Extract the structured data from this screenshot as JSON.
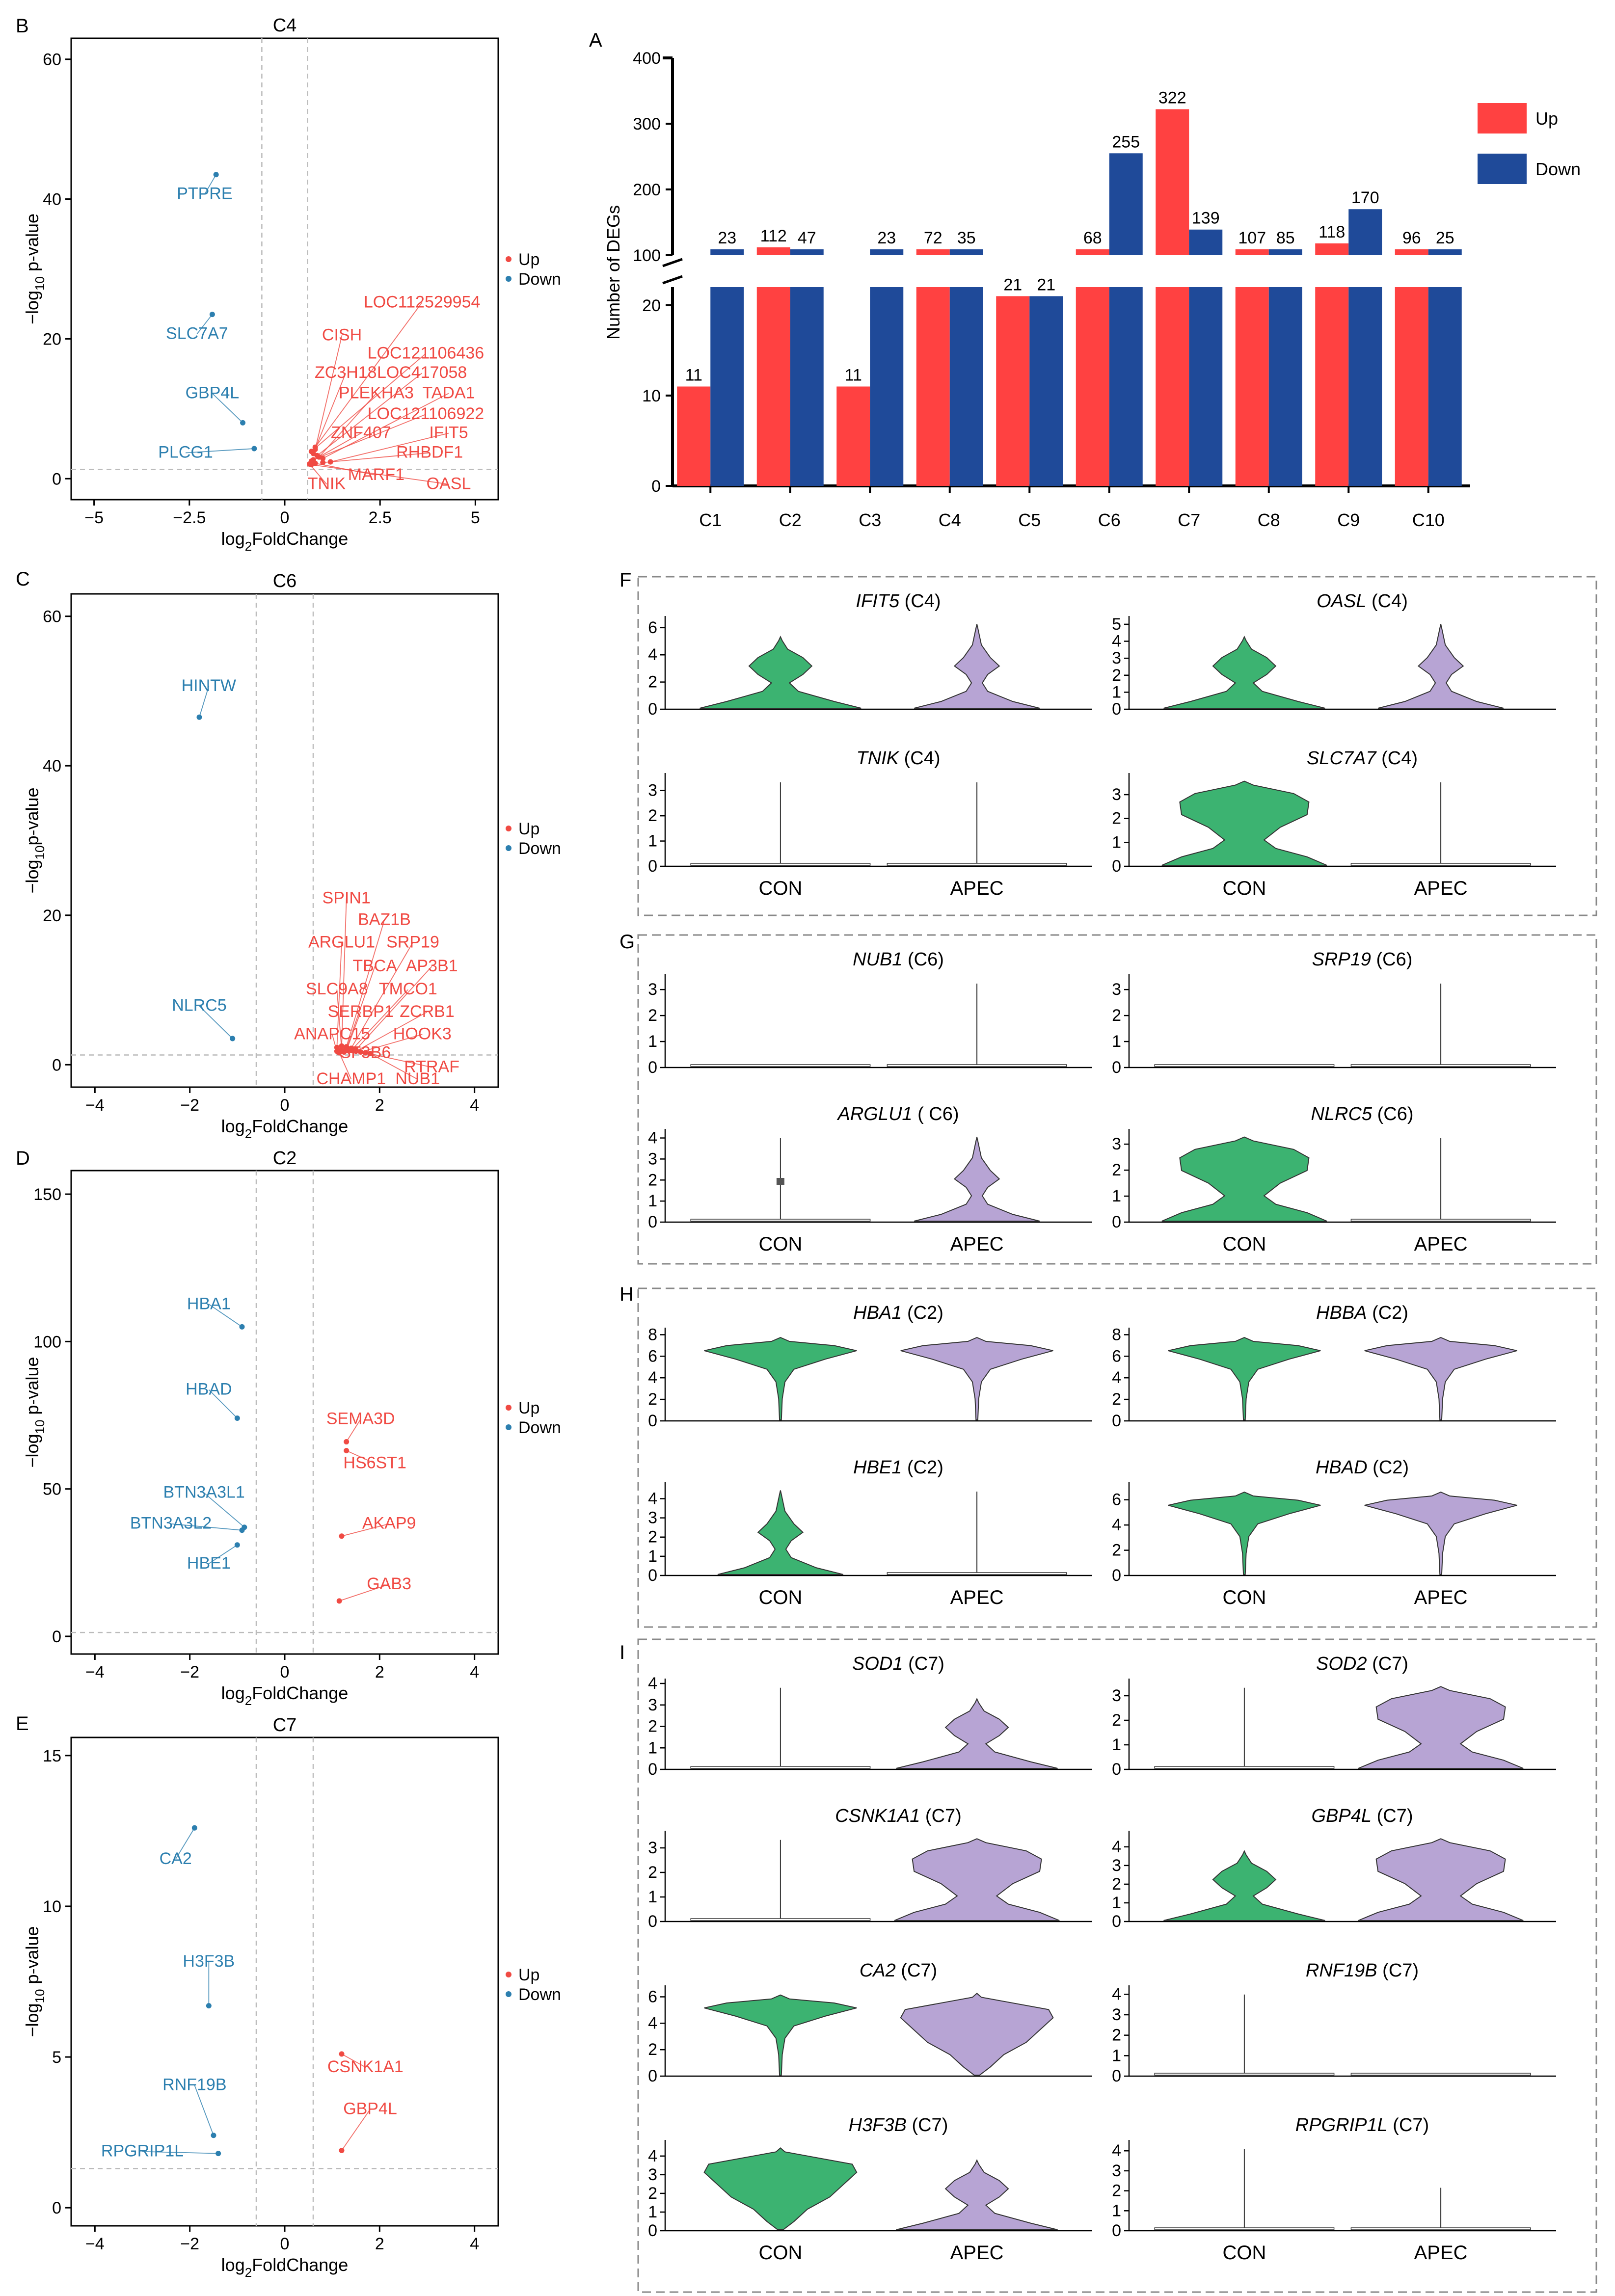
{
  "colors": {
    "up": "#f04a43",
    "down": "#2c7faf",
    "bar_up": "#ff4141",
    "bar_down": "#1f4a99",
    "con": "#3cb371",
    "apec": "#b7a4d4",
    "axis": "#000000"
  },
  "panel_labels": {
    "A": "A",
    "B": "B",
    "C": "C",
    "D": "D",
    "E": "E",
    "F": "F",
    "G": "G",
    "H": "H",
    "I": "I"
  },
  "chart_data": [
    {
      "id": "A",
      "type": "bar",
      "ylabel": "Number of DEGs",
      "categories": [
        "C1",
        "C2",
        "C3",
        "C4",
        "C5",
        "C6",
        "C7",
        "C8",
        "C9",
        "C10"
      ],
      "series": [
        {
          "name": "Up",
          "values": [
            11,
            112,
            11,
            72,
            21,
            68,
            322,
            107,
            118,
            96
          ]
        },
        {
          "name": "Down",
          "values": [
            23,
            47,
            23,
            35,
            21,
            255,
            139,
            85,
            170,
            25
          ]
        }
      ],
      "lower_axis": {
        "range": [
          0,
          22
        ],
        "ticks": [
          0,
          10,
          20
        ]
      },
      "upper_axis": {
        "range": [
          100,
          400
        ],
        "ticks": [
          100,
          200,
          300,
          400
        ]
      },
      "axis_break": true,
      "legend": [
        "Up",
        "Down"
      ]
    },
    {
      "id": "B",
      "type": "scatter",
      "title": "C4",
      "xlabel_main": "log",
      "xlabel_sub": "2",
      "xlabel_tail": "FoldChange",
      "ylabel_main": "−log",
      "ylabel_sub": "10",
      "ylabel_tail": " p-value",
      "xlim": [
        -5.6,
        5.6
      ],
      "ylim": [
        -3,
        63
      ],
      "xticks": [
        -5,
        -2.5,
        0,
        2.5,
        5
      ],
      "xtick_labels": [
        "−5",
        "−2.5",
        "0",
        "2.5",
        "5"
      ],
      "yticks": [
        0,
        20,
        40,
        60
      ],
      "vlines": [
        -0.6,
        0.6
      ],
      "hline": 1.3,
      "legend": [
        "Up",
        "Down"
      ],
      "points": [
        {
          "gene": "PTPRE",
          "x": -1.8,
          "y": 43.5,
          "dir": "down",
          "lx": -2.1,
          "ly": 40
        },
        {
          "gene": "SLC7A7",
          "x": -1.9,
          "y": 23.5,
          "dir": "down",
          "lx": -2.3,
          "ly": 20
        },
        {
          "gene": "GBP4L",
          "x": -1.1,
          "y": 8,
          "dir": "down",
          "lx": -1.9,
          "ly": 11.5
        },
        {
          "gene": "PLCG1",
          "x": -0.8,
          "y": 4.3,
          "dir": "down",
          "lx": -2.6,
          "ly": 3
        },
        {
          "gene": "LOC112529954",
          "x": 0.8,
          "y": 4.5,
          "dir": "up",
          "lx": 3.6,
          "ly": 24.5
        },
        {
          "gene": "CISH",
          "x": 0.8,
          "y": 4.2,
          "dir": "up",
          "lx": 1.5,
          "ly": 19.8
        },
        {
          "gene": "LOC121106436",
          "x": 0.7,
          "y": 3.9,
          "dir": "up",
          "lx": 3.7,
          "ly": 17.2
        },
        {
          "gene": "ZC3H18",
          "x": 0.75,
          "y": 3.6,
          "dir": "up",
          "lx": 1.6,
          "ly": 14.4
        },
        {
          "gene": "LOC417058",
          "x": 0.85,
          "y": 3.3,
          "dir": "up",
          "lx": 3.6,
          "ly": 14.4
        },
        {
          "gene": "PLEKHA3",
          "x": 0.9,
          "y": 3.1,
          "dir": "up",
          "lx": 2.4,
          "ly": 11.5
        },
        {
          "gene": "TADA1",
          "x": 1.0,
          "y": 2.9,
          "dir": "up",
          "lx": 4.3,
          "ly": 11.5
        },
        {
          "gene": "LOC121106922",
          "x": 0.75,
          "y": 2.7,
          "dir": "up",
          "lx": 3.7,
          "ly": 8.5
        },
        {
          "gene": "ZNF407",
          "x": 0.7,
          "y": 2.5,
          "dir": "up",
          "lx": 2.0,
          "ly": 5.8
        },
        {
          "gene": "IFIT5",
          "x": 1.2,
          "y": 2.4,
          "dir": "up",
          "lx": 4.3,
          "ly": 5.8
        },
        {
          "gene": "RHBDF1",
          "x": 1.0,
          "y": 2.3,
          "dir": "up",
          "lx": 3.8,
          "ly": 3
        },
        {
          "gene": "MARF1",
          "x": 0.8,
          "y": 2.2,
          "dir": "up",
          "lx": 2.4,
          "ly": -0.2
        },
        {
          "gene": "TNIK",
          "x": 0.65,
          "y": 2.1,
          "dir": "up",
          "lx": 1.1,
          "ly": -1.5
        },
        {
          "gene": "OASL",
          "x": 0.7,
          "y": 2.0,
          "dir": "up",
          "lx": 4.3,
          "ly": -1.5
        }
      ]
    },
    {
      "id": "C",
      "type": "scatter",
      "title": "C6",
      "xlabel_main": "log",
      "xlabel_sub": "2",
      "xlabel_tail": "FoldChange",
      "ylabel_main": "−log",
      "ylabel_sub": "10",
      "ylabel_tail": "p-value",
      "xlim": [
        -4.5,
        4.5
      ],
      "ylim": [
        -3,
        63
      ],
      "xticks": [
        -4,
        -2,
        0,
        2,
        4
      ],
      "xtick_labels": [
        "−4",
        "−2",
        "0",
        "2",
        "4"
      ],
      "yticks": [
        0,
        20,
        40,
        60
      ],
      "vlines": [
        -0.6,
        0.6
      ],
      "hline": 1.3,
      "legend": [
        "Up",
        "Down"
      ],
      "points": [
        {
          "gene": "HINTW",
          "x": -1.8,
          "y": 46.5,
          "dir": "down",
          "lx": -1.6,
          "ly": 50
        },
        {
          "gene": "NLRC5",
          "x": -1.1,
          "y": 3.5,
          "dir": "down",
          "lx": -1.8,
          "ly": 7.2
        },
        {
          "gene": "SPIN1",
          "x": 1.2,
          "y": 2.5,
          "dir": "up",
          "lx": 1.3,
          "ly": 21.6
        },
        {
          "gene": "BAZ1B",
          "x": 1.3,
          "y": 2.4,
          "dir": "up",
          "lx": 2.1,
          "ly": 18.7
        },
        {
          "gene": "ARGLU1",
          "x": 1.1,
          "y": 2.3,
          "dir": "up",
          "lx": 1.2,
          "ly": 15.7
        },
        {
          "gene": "SRP19",
          "x": 1.4,
          "y": 2.2,
          "dir": "up",
          "lx": 2.7,
          "ly": 15.7
        },
        {
          "gene": "TBCA",
          "x": 1.3,
          "y": 2.1,
          "dir": "up",
          "lx": 1.9,
          "ly": 12.5
        },
        {
          "gene": "AP3B1",
          "x": 1.5,
          "y": 2.0,
          "dir": "up",
          "lx": 3.1,
          "ly": 12.5
        },
        {
          "gene": "SLC9A8",
          "x": 1.2,
          "y": 2.0,
          "dir": "up",
          "lx": 1.1,
          "ly": 9.4
        },
        {
          "gene": "TMCO1",
          "x": 1.4,
          "y": 1.9,
          "dir": "up",
          "lx": 2.6,
          "ly": 9.4
        },
        {
          "gene": "SERBP1",
          "x": 1.3,
          "y": 1.9,
          "dir": "up",
          "lx": 1.6,
          "ly": 6.4
        },
        {
          "gene": "ZCRB1",
          "x": 1.5,
          "y": 1.8,
          "dir": "up",
          "lx": 3.0,
          "ly": 6.4
        },
        {
          "gene": "ANAPC15",
          "x": 1.1,
          "y": 1.8,
          "dir": "up",
          "lx": 1.0,
          "ly": 3.4
        },
        {
          "gene": "HOOK3",
          "x": 1.6,
          "y": 1.7,
          "dir": "up",
          "lx": 2.9,
          "ly": 3.4
        },
        {
          "gene": "SF3B6",
          "x": 1.25,
          "y": 1.7,
          "dir": "up",
          "lx": 1.7,
          "ly": 0.9
        },
        {
          "gene": "RTRAF",
          "x": 1.7,
          "y": 1.6,
          "dir": "up",
          "lx": 3.1,
          "ly": -1.0
        },
        {
          "gene": "CHAMP1",
          "x": 1.15,
          "y": 1.6,
          "dir": "up",
          "lx": 1.4,
          "ly": -2.6
        },
        {
          "gene": "NUB1",
          "x": 1.8,
          "y": 1.5,
          "dir": "up",
          "lx": 2.8,
          "ly": -2.6
        }
      ]
    },
    {
      "id": "D",
      "type": "scatter",
      "title": "C2",
      "xlabel_main": "log",
      "xlabel_sub": "2",
      "xlabel_tail": "FoldChange",
      "ylabel_main": "−log",
      "ylabel_sub": "10",
      "ylabel_tail": " p-value",
      "xlim": [
        -4.5,
        4.5
      ],
      "ylim": [
        -6,
        158
      ],
      "xticks": [
        -4,
        -2,
        0,
        2,
        4
      ],
      "xtick_labels": [
        "−4",
        "−2",
        "0",
        "2",
        "4"
      ],
      "yticks": [
        0,
        50,
        100,
        150
      ],
      "vlines": [
        -0.6,
        0.6
      ],
      "hline": 1.3,
      "legend": [
        "Up",
        "Down"
      ],
      "points": [
        {
          "gene": "HBA1",
          "x": -0.9,
          "y": 105,
          "dir": "down",
          "lx": -1.6,
          "ly": 111
        },
        {
          "gene": "HBAD",
          "x": -1.0,
          "y": 74,
          "dir": "down",
          "lx": -1.6,
          "ly": 82
        },
        {
          "gene": "BTN3A3L1",
          "x": -0.85,
          "y": 37,
          "dir": "down",
          "lx": -1.7,
          "ly": 47
        },
        {
          "gene": "BTN3A3L2",
          "x": -0.9,
          "y": 36,
          "dir": "down",
          "lx": -2.4,
          "ly": 36.5
        },
        {
          "gene": "HBE1",
          "x": -1.0,
          "y": 31,
          "dir": "down",
          "lx": -1.6,
          "ly": 23
        },
        {
          "gene": "SEMA3D",
          "x": 1.3,
          "y": 66,
          "dir": "up",
          "lx": 1.6,
          "ly": 72
        },
        {
          "gene": "HS6ST1",
          "x": 1.3,
          "y": 63,
          "dir": "up",
          "lx": 1.9,
          "ly": 57
        },
        {
          "gene": "AKAP9",
          "x": 1.2,
          "y": 34,
          "dir": "up",
          "lx": 2.2,
          "ly": 36.5
        },
        {
          "gene": "GAB3",
          "x": 1.15,
          "y": 12,
          "dir": "up",
          "lx": 2.2,
          "ly": 16
        }
      ]
    },
    {
      "id": "E",
      "type": "scatter",
      "title": "C7",
      "xlabel_main": "log",
      "xlabel_sub": "2",
      "xlabel_tail": "FoldChange",
      "ylabel_main": "−log",
      "ylabel_sub": "10",
      "ylabel_tail": " p-value",
      "xlim": [
        -4.5,
        4.5
      ],
      "ylim": [
        -0.6,
        15.6
      ],
      "xticks": [
        -4,
        -2,
        0,
        2,
        4
      ],
      "xtick_labels": [
        "−4",
        "−2",
        "0",
        "2",
        "4"
      ],
      "yticks": [
        0,
        5,
        10,
        15
      ],
      "vlines": [
        -0.6,
        0.6
      ],
      "hline": 1.3,
      "legend": [
        "Up",
        "Down"
      ],
      "points": [
        {
          "gene": "CA2",
          "x": -1.9,
          "y": 12.6,
          "dir": "down",
          "lx": -2.3,
          "ly": 11.4
        },
        {
          "gene": "H3F3B",
          "x": -1.6,
          "y": 6.7,
          "dir": "down",
          "lx": -1.6,
          "ly": 8.0
        },
        {
          "gene": "RNF19B",
          "x": -1.5,
          "y": 2.4,
          "dir": "down",
          "lx": -1.9,
          "ly": 3.9
        },
        {
          "gene": "RPGRIP1L",
          "x": -1.4,
          "y": 1.8,
          "dir": "down",
          "lx": -3.0,
          "ly": 1.7
        },
        {
          "gene": "CSNK1A1",
          "x": 1.2,
          "y": 5.1,
          "dir": "up",
          "lx": 1.7,
          "ly": 4.5
        },
        {
          "gene": "GBP4L",
          "x": 1.2,
          "y": 1.9,
          "dir": "up",
          "lx": 1.8,
          "ly": 3.1
        }
      ]
    },
    {
      "id": "FGHI",
      "type": "violin",
      "groups": [
        "CON",
        "APEC"
      ],
      "panels": [
        {
          "gene": "IFIT5",
          "cluster": " (C4)",
          "yticks": [
            0,
            2,
            4,
            6
          ],
          "ymax": 6.5,
          "con": "bimodal",
          "apec": "bimodal_top"
        },
        {
          "gene": "OASL",
          "cluster": " (C4)",
          "yticks": [
            0,
            1,
            2,
            3,
            4,
            5
          ],
          "ymax": 5.2,
          "con": "bimodal",
          "apec": "bimodal_top"
        },
        {
          "gene": "TNIK",
          "cluster": " (C4)",
          "yticks": [
            0,
            1,
            2,
            3
          ],
          "ymax": 3.5,
          "con": "line",
          "apec": "line"
        },
        {
          "gene": "SLC7A7",
          "cluster": " (C4)",
          "yticks": [
            0,
            1,
            2,
            3
          ],
          "ymax": 3.7,
          "con": "bimodal_wide",
          "apec": "line"
        },
        {
          "gene": "NUB1",
          "cluster": " (C6)",
          "yticks": [
            0,
            1,
            2,
            3
          ],
          "ymax": 3.4,
          "con": "flat",
          "apec": "line"
        },
        {
          "gene": "SRP19",
          "cluster": " (C6)",
          "yticks": [
            0,
            1,
            2,
            3
          ],
          "ymax": 3.4,
          "con": "flat",
          "apec": "line"
        },
        {
          "gene": "ARGLU1",
          "cluster": " ( C6)",
          "yticks": [
            0,
            1,
            2,
            3,
            4
          ],
          "ymax": 4.2,
          "con": "line_box",
          "apec": "bimodal_top"
        },
        {
          "gene": "NLRC5",
          "cluster": " (C6)",
          "yticks": [
            0,
            1,
            2,
            3
          ],
          "ymax": 3.4,
          "con": "bimodal_wide",
          "apec": "line"
        },
        {
          "gene": "HBA1",
          "cluster": " (C2)",
          "yticks": [
            0,
            2,
            4,
            6,
            8
          ],
          "ymax": 8.2,
          "con": "high",
          "apec": "high"
        },
        {
          "gene": "HBBA",
          "cluster": " (C2)",
          "yticks": [
            0,
            2,
            4,
            6,
            8
          ],
          "ymax": 8.2,
          "con": "high",
          "apec": "high"
        },
        {
          "gene": "HBE1",
          "cluster": " (C2)",
          "yticks": [
            0,
            1,
            2,
            3,
            4
          ],
          "ymax": 4.6,
          "con": "bimodal_top",
          "apec": "line"
        },
        {
          "gene": "HBAD",
          "cluster": " (C2)",
          "yticks": [
            0,
            2,
            4,
            6
          ],
          "ymax": 7.0,
          "con": "high",
          "apec": "high"
        },
        {
          "gene": "SOD1",
          "cluster": " (C7)",
          "yticks": [
            0,
            1,
            2,
            3,
            4
          ],
          "ymax": 4.0,
          "con": "line",
          "apec": "bimodal"
        },
        {
          "gene": "SOD2",
          "cluster": " (C7)",
          "yticks": [
            0,
            1,
            2,
            3
          ],
          "ymax": 3.5,
          "con": "line",
          "apec": "bimodal_wide"
        },
        {
          "gene": "CSNK1A1",
          "cluster": " (C7)",
          "yticks": [
            0,
            1,
            2,
            3
          ],
          "ymax": 3.5,
          "con": "line",
          "apec": "bimodal_wide"
        },
        {
          "gene": "GBP4L",
          "cluster": " (C7)",
          "yticks": [
            0,
            1,
            2,
            3,
            4
          ],
          "ymax": 4.6,
          "con": "bimodal",
          "apec": "bimodal_wide"
        },
        {
          "gene": "CA2",
          "cluster": " (C7)",
          "yticks": [
            0,
            2,
            4,
            6
          ],
          "ymax": 6.5,
          "con": "high",
          "apec": "high_wide"
        },
        {
          "gene": "RNF19B",
          "cluster": " (C7)",
          "yticks": [
            0,
            1,
            2,
            3,
            4
          ],
          "ymax": 4.2,
          "con": "line",
          "apec": "flat"
        },
        {
          "gene": "H3F3B",
          "cluster": " (C7)",
          "yticks": [
            0,
            1,
            2,
            3,
            4
          ],
          "ymax": 4.6,
          "con": "high_wide",
          "apec": "bimodal"
        },
        {
          "gene": "RPGRIP1L",
          "cluster": " (C7)",
          "yticks": [
            0,
            1,
            2,
            3,
            4
          ],
          "ymax": 4.3,
          "con": "line",
          "apec": "line_short"
        }
      ]
    }
  ]
}
